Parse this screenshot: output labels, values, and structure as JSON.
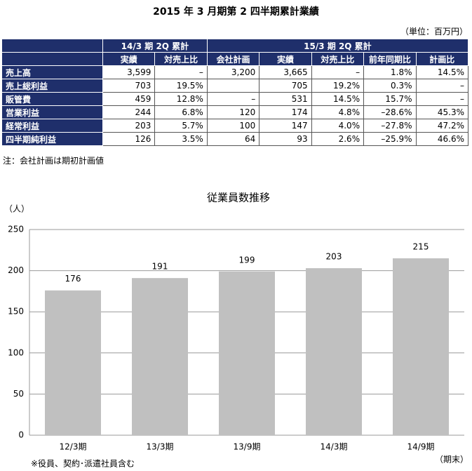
{
  "header": {
    "title": "2015 年 3 月期第 2 四半期累計業績",
    "unit": "（単位：百万円）"
  },
  "table": {
    "group_headers": [
      "14/3 期 2Q 累計",
      "15/3 期 2Q 累計"
    ],
    "columns": [
      "実績",
      "対売上比",
      "会社計画",
      "実績",
      "対売上比",
      "前年同期比",
      "計画比"
    ],
    "rows": [
      {
        "label": "売上高",
        "cells": [
          "3,599",
          "–",
          "3,200",
          "3,665",
          "–",
          "1.8%",
          "14.5%"
        ]
      },
      {
        "label": "売上総利益",
        "cells": [
          "703",
          "19.5%",
          null,
          "705",
          "19.2%",
          "0.3%",
          "–"
        ]
      },
      {
        "label": "販管費",
        "cells": [
          "459",
          "12.8%",
          "–",
          "531",
          "14.5%",
          "15.7%",
          "–"
        ]
      },
      {
        "label": "営業利益",
        "cells": [
          "244",
          "6.8%",
          "120",
          "174",
          "4.8%",
          "–28.6%",
          "45.3%"
        ]
      },
      {
        "label": "経常利益",
        "cells": [
          "203",
          "5.7%",
          "100",
          "147",
          "4.0%",
          "–27.8%",
          "47.2%"
        ]
      },
      {
        "label": "四半期純利益",
        "cells": [
          "126",
          "3.5%",
          "64",
          "93",
          "2.6%",
          "–25.9%",
          "46.6%"
        ]
      }
    ],
    "note": "注：会社計画は期初計画値"
  },
  "chart_data": {
    "type": "bar",
    "title": "従業員数推移",
    "y_label": "（人）",
    "x_label": "（期末）",
    "categories": [
      "12/3期",
      "13/3期",
      "13/9期",
      "14/3期",
      "14/9期"
    ],
    "values": [
      176,
      191,
      199,
      203,
      215
    ],
    "color": "#c0c0c0",
    "ylim": [
      0,
      250
    ],
    "yticks": [
      0,
      50,
      100,
      150,
      200,
      250
    ],
    "grid": true,
    "footnote": "※役員、契約･派遣社員含む"
  }
}
